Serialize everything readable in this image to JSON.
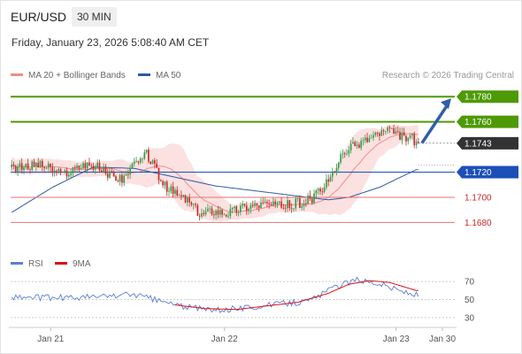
{
  "header": {
    "pair": "EUR/USD",
    "timeframe": "30 MIN",
    "datetime": "Friday, January 23, 2026 5:08:40 AM CET"
  },
  "legend": {
    "ma20": "MA 20 + Bollinger Bands",
    "ma50": "MA 50",
    "credit": "Research © 2026 Trading Central"
  },
  "rsi_legend": {
    "rsi": "RSI",
    "ma": "9MA"
  },
  "colors": {
    "up_candle": "#2e9e4a",
    "down_candle": "#c62828",
    "bollinger_fill": "#fbdcdc",
    "ma20": "#f28b8b",
    "ma50": "#2d5aa8",
    "resistance": "#4d9a06",
    "support": "#e57373",
    "pivot": "#1d4fb8",
    "last": "#333333",
    "rsi_line": "#5b7fd6",
    "rsi_ma": "#dd1111"
  },
  "chart_data": [
    {
      "type": "candlestick",
      "symbol": "EUR/USD",
      "interval": "30 MIN",
      "ylim": [
        1.1662,
        1.179
      ],
      "last_price": 1.1743,
      "levels": [
        {
          "label": "1.1780",
          "value": 1.178,
          "kind": "resistance"
        },
        {
          "label": "1.1760",
          "value": 1.176,
          "kind": "resistance"
        },
        {
          "label": "1.1720",
          "value": 1.172,
          "kind": "pivot"
        },
        {
          "label": "1.1700",
          "value": 1.17,
          "kind": "support"
        },
        {
          "label": "1.1680",
          "value": 1.168,
          "kind": "support"
        }
      ],
      "x_ticks": [
        "Jan 21",
        "Jan 22",
        "Jan 23",
        "Jan 30"
      ],
      "price_path": [
        [
          0,
          1.1725
        ],
        [
          6,
          1.1723
        ],
        [
          12,
          1.1727
        ],
        [
          18,
          1.1724
        ],
        [
          24,
          1.1718
        ],
        [
          30,
          1.1722
        ],
        [
          36,
          1.1727
        ],
        [
          42,
          1.1724
        ],
        [
          48,
          1.1718
        ],
        [
          54,
          1.1715
        ],
        [
          58,
          1.1722
        ],
        [
          62,
          1.1727
        ],
        [
          66,
          1.1735
        ],
        [
          70,
          1.1724
        ],
        [
          74,
          1.171
        ],
        [
          80,
          1.1703
        ],
        [
          86,
          1.1698
        ],
        [
          92,
          1.1686
        ],
        [
          98,
          1.169
        ],
        [
          106,
          1.1688
        ],
        [
          112,
          1.1692
        ],
        [
          118,
          1.1694
        ],
        [
          124,
          1.1695
        ],
        [
          130,
          1.1693
        ],
        [
          136,
          1.1694
        ],
        [
          142,
          1.1696
        ],
        [
          148,
          1.17
        ],
        [
          152,
          1.1707
        ],
        [
          156,
          1.1715
        ],
        [
          160,
          1.1728
        ],
        [
          164,
          1.1738
        ],
        [
          168,
          1.1741
        ],
        [
          172,
          1.1745
        ],
        [
          176,
          1.1748
        ],
        [
          180,
          1.1751
        ],
        [
          184,
          1.1753
        ],
        [
          188,
          1.175
        ],
        [
          192,
          1.1748
        ],
        [
          196,
          1.1747
        ],
        [
          198,
          1.1743
        ]
      ],
      "ma50_path": [
        [
          0,
          1.1688
        ],
        [
          20,
          1.1708
        ],
        [
          40,
          1.1724
        ],
        [
          60,
          1.1723
        ],
        [
          80,
          1.1716
        ],
        [
          100,
          1.1709
        ],
        [
          120,
          1.1705
        ],
        [
          140,
          1.1701
        ],
        [
          155,
          1.1698
        ],
        [
          165,
          1.17
        ],
        [
          180,
          1.1708
        ],
        [
          198,
          1.1722
        ]
      ]
    },
    {
      "type": "line",
      "name": "RSI",
      "ylim": [
        22,
        78
      ],
      "y_ticks": [
        70,
        50,
        30
      ],
      "series": [
        {
          "name": "RSI",
          "values_path": [
            [
              0,
              53
            ],
            [
              20,
              52
            ],
            [
              40,
              53
            ],
            [
              60,
              56
            ],
            [
              70,
              50
            ],
            [
              85,
              42
            ],
            [
              100,
              38
            ],
            [
              115,
              41
            ],
            [
              130,
              45
            ],
            [
              145,
              48
            ],
            [
              160,
              66
            ],
            [
              170,
              72
            ],
            [
              180,
              68
            ],
            [
              190,
              60
            ],
            [
              198,
              55
            ]
          ]
        },
        {
          "name": "9MA",
          "values_path": [
            [
              80,
              44
            ],
            [
              95,
              40
            ],
            [
              110,
              39
            ],
            [
              125,
              43
            ],
            [
              140,
              47
            ],
            [
              155,
              57
            ],
            [
              165,
              67
            ],
            [
              175,
              71
            ],
            [
              185,
              69
            ],
            [
              198,
              60
            ]
          ]
        }
      ]
    }
  ]
}
